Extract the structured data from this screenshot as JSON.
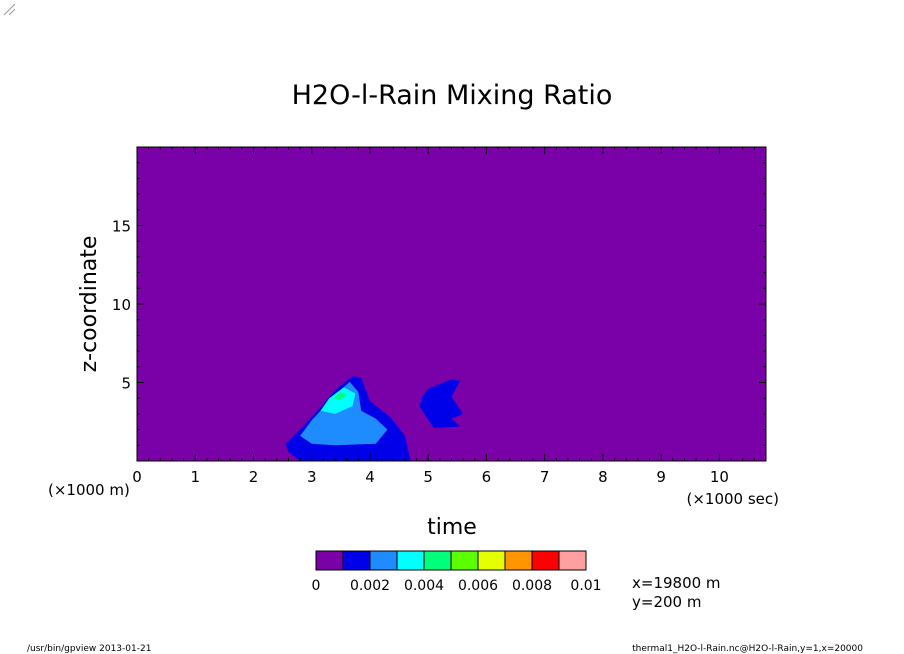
{
  "chart_data": {
    "type": "contour",
    "title": "H2O-l-Rain Mixing Ratio",
    "xlabel": "time",
    "ylabel": "z-coordinate",
    "x_scale_note": "(×1000 sec)",
    "y_scale_note": "(×1000 m)",
    "xlim": [
      0,
      10.8
    ],
    "ylim": [
      0,
      20
    ],
    "x_ticks": [
      "0",
      "1",
      "2",
      "3",
      "4",
      "5",
      "6",
      "7",
      "8",
      "9",
      "10"
    ],
    "y_ticks": [
      "5",
      "10",
      "15"
    ],
    "colorbar": {
      "levels": [
        0,
        0.001,
        0.002,
        0.003,
        0.004,
        0.005,
        0.006,
        0.007,
        0.008,
        0.009,
        0.01
      ],
      "labels": [
        "0",
        "0.002",
        "0.004",
        "0.006",
        "0.008",
        "0.01"
      ],
      "colors": [
        "#7a00a8",
        "#0000e8",
        "#1e8cff",
        "#00ffff",
        "#00ff7a",
        "#5cff00",
        "#e6ff00",
        "#ff9600",
        "#ff0000",
        "#ffa0a0"
      ]
    },
    "background_color": "#7a00a8",
    "contours": [
      {
        "level": "0.001-0.002",
        "color": "#0000e8",
        "points": [
          [
            2.55,
            1.1
          ],
          [
            2.8,
            2.0
          ],
          [
            3.1,
            3.2
          ],
          [
            3.4,
            4.5
          ],
          [
            3.7,
            5.4
          ],
          [
            3.85,
            5.3
          ],
          [
            4.0,
            3.8
          ],
          [
            4.35,
            2.8
          ],
          [
            4.6,
            1.6
          ],
          [
            4.7,
            0
          ],
          [
            2.8,
            0
          ],
          [
            2.6,
            0.6
          ]
        ]
      },
      {
        "level": "0.002-0.003",
        "color": "#1e8cff",
        "points": [
          [
            2.8,
            1.6
          ],
          [
            3.0,
            2.6
          ],
          [
            3.35,
            4.0
          ],
          [
            3.65,
            5.05
          ],
          [
            3.8,
            4.4
          ],
          [
            3.85,
            3.2
          ],
          [
            4.1,
            2.7
          ],
          [
            4.3,
            2.0
          ],
          [
            4.1,
            1.1
          ],
          [
            3.4,
            1.0
          ],
          [
            3.0,
            1.1
          ]
        ]
      },
      {
        "level": "0.003-0.004",
        "color": "#00ffff",
        "points": [
          [
            3.15,
            3.2
          ],
          [
            3.3,
            4.0
          ],
          [
            3.55,
            4.7
          ],
          [
            3.75,
            4.3
          ],
          [
            3.7,
            3.5
          ],
          [
            3.4,
            3.0
          ]
        ]
      },
      {
        "level": "0.004-0.005",
        "color": "#00ff7a",
        "points": [
          [
            3.38,
            4.0
          ],
          [
            3.5,
            4.4
          ],
          [
            3.6,
            4.2
          ],
          [
            3.48,
            3.9
          ]
        ]
      },
      {
        "level": "0.001-0.002",
        "color": "#0000e8",
        "points": [
          [
            5.0,
            4.6
          ],
          [
            5.4,
            5.2
          ],
          [
            5.55,
            5.1
          ],
          [
            5.4,
            4.1
          ],
          [
            5.6,
            3.0
          ],
          [
            5.4,
            2.7
          ],
          [
            5.55,
            2.2
          ],
          [
            5.1,
            2.1
          ],
          [
            4.95,
            2.9
          ],
          [
            4.85,
            3.5
          ],
          [
            4.9,
            4.1
          ]
        ]
      }
    ],
    "annotations": [
      "x=19800 m",
      "y=200 m"
    ]
  },
  "footer": {
    "left": "/usr/bin/gpview  2013-01-21",
    "right": "thermal1_H2O-l-Rain.nc@H2O-l-Rain,y=1,x=20000"
  }
}
